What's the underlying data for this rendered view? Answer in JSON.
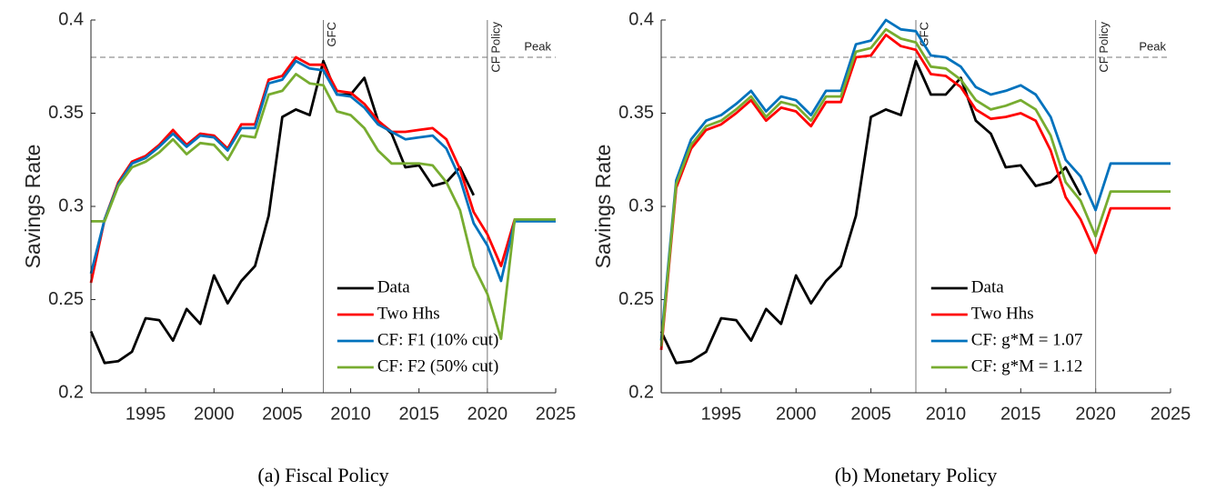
{
  "chart_data": [
    {
      "type": "line",
      "caption": "(a) Fiscal Policy",
      "ylabel": "Savings Rate",
      "x": [
        1991,
        1992,
        1993,
        1994,
        1995,
        1996,
        1997,
        1998,
        1999,
        2000,
        2001,
        2002,
        2003,
        2004,
        2005,
        2006,
        2007,
        2008,
        2009,
        2010,
        2011,
        2012,
        2013,
        2014,
        2015,
        2016,
        2017,
        2018,
        2019,
        2020,
        2021,
        2022,
        2023,
        2024,
        2025
      ],
      "xlim": [
        1991,
        2025
      ],
      "xticks": [
        1995,
        2000,
        2005,
        2010,
        2015,
        2020,
        2025
      ],
      "ylim": [
        0.2,
        0.4
      ],
      "yticks": [
        0.2,
        0.25,
        0.3,
        0.35,
        0.4
      ],
      "legend": "lower-right",
      "vlines": [
        {
          "x": 2008,
          "label": "GFC"
        },
        {
          "x": 2020,
          "label": "CF Policy"
        }
      ],
      "hline": {
        "y": 0.38,
        "label": "Peak"
      },
      "series": [
        {
          "name": "Data",
          "color": "#000000",
          "values": [
            0.233,
            0.216,
            0.217,
            0.222,
            0.24,
            0.239,
            0.228,
            0.245,
            0.237,
            0.263,
            0.248,
            0.26,
            0.268,
            0.295,
            0.348,
            0.352,
            0.349,
            0.378,
            0.36,
            0.36,
            0.369,
            0.346,
            0.339,
            0.321,
            0.322,
            0.311,
            0.313,
            0.321,
            0.306,
            null,
            null,
            null,
            null,
            null,
            null
          ]
        },
        {
          "name": "Two Hhs",
          "color": "#ff0000",
          "values": [
            0.259,
            0.293,
            0.313,
            0.324,
            0.327,
            0.333,
            0.341,
            0.333,
            0.339,
            0.338,
            0.331,
            0.344,
            0.344,
            0.368,
            0.37,
            0.38,
            0.376,
            0.376,
            0.362,
            0.361,
            0.355,
            0.346,
            0.34,
            0.34,
            0.341,
            0.342,
            0.336,
            0.32,
            0.297,
            0.285,
            0.268,
            0.293,
            0.293,
            0.293,
            0.293
          ]
        },
        {
          "name": "CF: F1 (10% cut)",
          "color": "#0072bd",
          "values": [
            0.264,
            0.293,
            0.312,
            0.323,
            0.326,
            0.332,
            0.339,
            0.332,
            0.338,
            0.337,
            0.33,
            0.342,
            0.342,
            0.366,
            0.368,
            0.378,
            0.374,
            0.373,
            0.36,
            0.359,
            0.353,
            0.344,
            0.34,
            0.336,
            0.337,
            0.338,
            0.331,
            0.315,
            0.291,
            0.279,
            0.26,
            0.292,
            0.292,
            0.292,
            0.292
          ]
        },
        {
          "name": "CF: F2 (50% cut)",
          "color": "#77ac30",
          "values": [
            0.292,
            0.292,
            0.311,
            0.321,
            0.324,
            0.329,
            0.336,
            0.328,
            0.334,
            0.333,
            0.325,
            0.338,
            0.337,
            0.36,
            0.362,
            0.371,
            0.366,
            0.365,
            0.351,
            0.349,
            0.342,
            0.33,
            0.323,
            0.323,
            0.323,
            0.322,
            0.313,
            0.298,
            0.268,
            0.253,
            0.229,
            0.293,
            0.293,
            0.293,
            0.293
          ]
        }
      ]
    },
    {
      "type": "line",
      "caption": "(b) Monetary Policy",
      "ylabel": "Savings Rate",
      "x": [
        1991,
        1992,
        1993,
        1994,
        1995,
        1996,
        1997,
        1998,
        1999,
        2000,
        2001,
        2002,
        2003,
        2004,
        2005,
        2006,
        2007,
        2008,
        2009,
        2010,
        2011,
        2012,
        2013,
        2014,
        2015,
        2016,
        2017,
        2018,
        2019,
        2020,
        2021,
        2022,
        2023,
        2024,
        2025
      ],
      "xlim": [
        1991,
        2025
      ],
      "xticks": [
        1995,
        2000,
        2005,
        2010,
        2015,
        2020,
        2025
      ],
      "ylim": [
        0.2,
        0.4
      ],
      "yticks": [
        0.2,
        0.25,
        0.3,
        0.35,
        0.4
      ],
      "legend": "lower-right",
      "vlines": [
        {
          "x": 2008,
          "label": "GFC"
        },
        {
          "x": 2020,
          "label": "CF Policy"
        }
      ],
      "hline": {
        "y": 0.38,
        "label": "Peak"
      },
      "series": [
        {
          "name": "Data",
          "color": "#000000",
          "values": [
            0.233,
            0.216,
            0.217,
            0.222,
            0.24,
            0.239,
            0.228,
            0.245,
            0.237,
            0.263,
            0.248,
            0.26,
            0.268,
            0.295,
            0.348,
            0.352,
            0.349,
            0.378,
            0.36,
            0.36,
            0.369,
            0.346,
            0.339,
            0.321,
            0.322,
            0.311,
            0.313,
            0.321,
            0.306,
            null,
            null,
            null,
            null,
            null,
            null
          ]
        },
        {
          "name": "Two Hhs",
          "color": "#ff0000",
          "values": [
            0.223,
            0.31,
            0.331,
            0.341,
            0.344,
            0.35,
            0.357,
            0.346,
            0.353,
            0.351,
            0.343,
            0.356,
            0.356,
            0.38,
            0.381,
            0.392,
            0.386,
            0.384,
            0.371,
            0.37,
            0.364,
            0.352,
            0.347,
            0.348,
            0.35,
            0.346,
            0.33,
            0.305,
            0.293,
            0.275,
            0.299,
            0.299,
            0.299,
            0.299,
            0.299
          ]
        },
        {
          "name": "CF: g*M = 1.07",
          "color": "#0072bd",
          "values": [
            0.228,
            0.314,
            0.336,
            0.346,
            0.349,
            0.355,
            0.362,
            0.351,
            0.359,
            0.357,
            0.349,
            0.362,
            0.362,
            0.387,
            0.389,
            0.4,
            0.395,
            0.394,
            0.381,
            0.38,
            0.375,
            0.364,
            0.36,
            0.362,
            0.365,
            0.36,
            0.348,
            0.325,
            0.316,
            0.298,
            0.323,
            0.323,
            0.323,
            0.323,
            0.323
          ]
        },
        {
          "name": "CF: g*M = 1.12",
          "color": "#77ac30",
          "values": [
            0.225,
            0.312,
            0.333,
            0.343,
            0.346,
            0.352,
            0.359,
            0.348,
            0.356,
            0.354,
            0.346,
            0.359,
            0.359,
            0.383,
            0.385,
            0.395,
            0.39,
            0.388,
            0.375,
            0.374,
            0.368,
            0.357,
            0.352,
            0.354,
            0.357,
            0.352,
            0.338,
            0.313,
            0.303,
            0.284,
            0.308,
            0.308,
            0.308,
            0.308,
            0.308
          ]
        }
      ]
    }
  ]
}
